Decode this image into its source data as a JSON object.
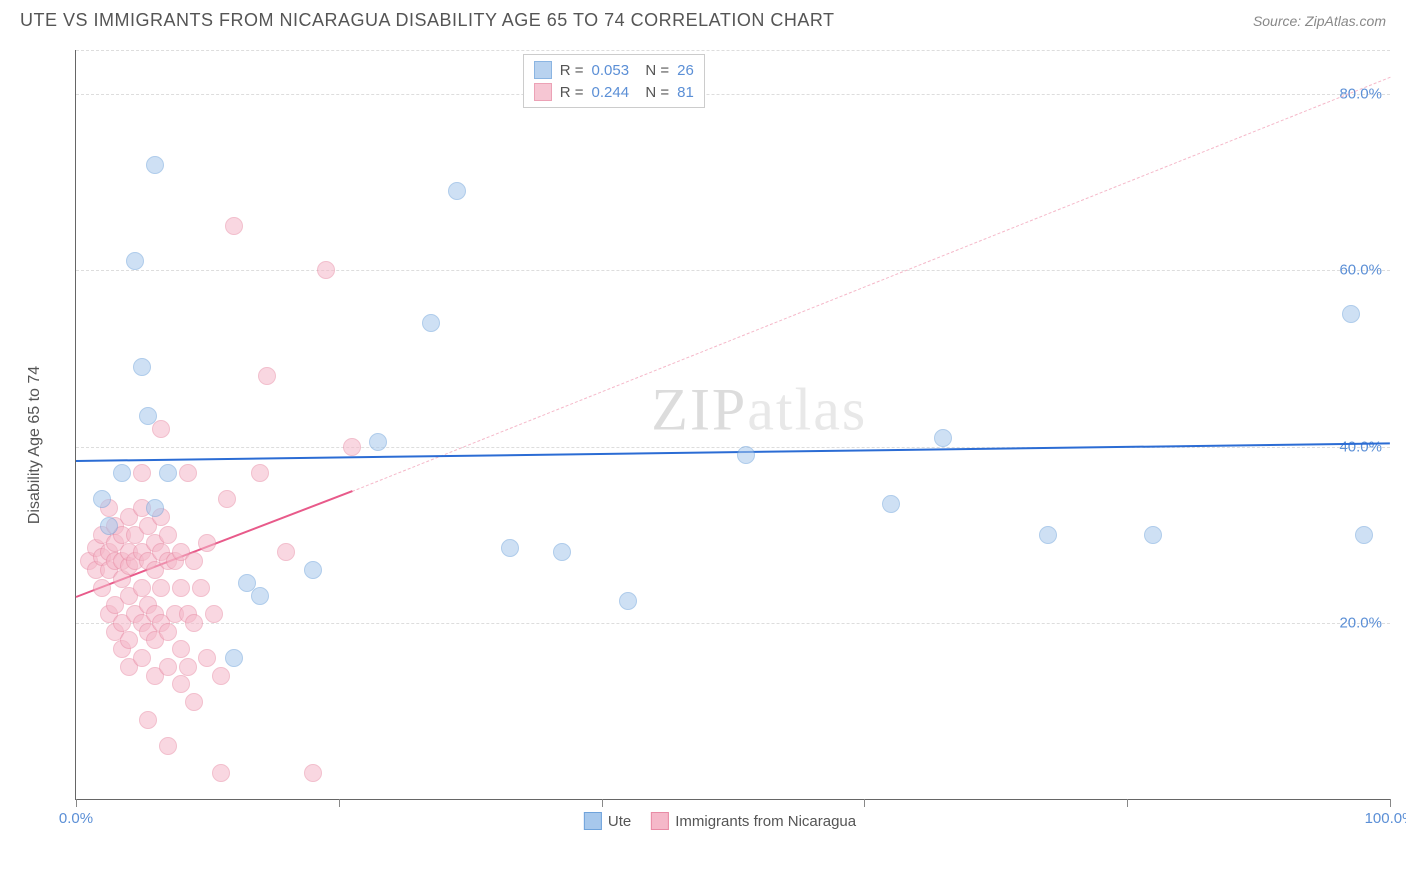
{
  "header": {
    "title": "UTE VS IMMIGRANTS FROM NICARAGUA DISABILITY AGE 65 TO 74 CORRELATION CHART",
    "source": "Source: ZipAtlas.com"
  },
  "chart": {
    "type": "scatter",
    "y_axis_label": "Disability Age 65 to 74",
    "xlim": [
      0,
      100
    ],
    "ylim": [
      0,
      85
    ],
    "xticks": [
      0,
      20,
      40,
      60,
      80,
      100
    ],
    "xtick_labels": {
      "0": "0.0%",
      "100": "100.0%"
    },
    "yticks": [
      20,
      40,
      60,
      80
    ],
    "ytick_labels": [
      "20.0%",
      "40.0%",
      "60.0%",
      "80.0%"
    ],
    "background_color": "#ffffff",
    "grid_color": "#dddddd",
    "point_radius": 9,
    "series": {
      "ute": {
        "label": "Ute",
        "fill_color": "#a7c8ec",
        "stroke_color": "#6fa3db",
        "fill_opacity": 0.55,
        "R": "0.053",
        "N": "26",
        "trend": {
          "x1": 0,
          "y1": 38.5,
          "x2": 100,
          "y2": 40.5,
          "color": "#2b6cd4",
          "width": 2.5,
          "dash": false
        },
        "points": [
          [
            2,
            34
          ],
          [
            2.5,
            31
          ],
          [
            3.5,
            37
          ],
          [
            4.5,
            61
          ],
          [
            5,
            49
          ],
          [
            5.5,
            43.5
          ],
          [
            6,
            72
          ],
          [
            6,
            33
          ],
          [
            7,
            37
          ],
          [
            12,
            16
          ],
          [
            13,
            24.5
          ],
          [
            14,
            23
          ],
          [
            18,
            26
          ],
          [
            23,
            40.5
          ],
          [
            27,
            54
          ],
          [
            29,
            69
          ],
          [
            33,
            28.5
          ],
          [
            37,
            28
          ],
          [
            42,
            22.5
          ],
          [
            51,
            39
          ],
          [
            62,
            33.5
          ],
          [
            66,
            41
          ],
          [
            74,
            30
          ],
          [
            82,
            30
          ],
          [
            97,
            55
          ],
          [
            98,
            30
          ]
        ]
      },
      "nicaragua": {
        "label": "Immigrants from Nicaragua",
        "fill_color": "#f5b8c9",
        "stroke_color": "#e88ba5",
        "fill_opacity": 0.55,
        "R": "0.244",
        "N": "81",
        "trend_solid": {
          "x1": 0,
          "y1": 23,
          "x2": 21,
          "y2": 35,
          "color": "#e85a8a",
          "width": 2.5
        },
        "trend_dash": {
          "x1": 21,
          "y1": 35,
          "x2": 100,
          "y2": 82,
          "color": "#f5b8c9",
          "width": 1.5
        },
        "points": [
          [
            1,
            27
          ],
          [
            1.5,
            26
          ],
          [
            1.5,
            28.5
          ],
          [
            2,
            24
          ],
          [
            2,
            27.5
          ],
          [
            2,
            30
          ],
          [
            2.5,
            21
          ],
          [
            2.5,
            26
          ],
          [
            2.5,
            28
          ],
          [
            2.5,
            33
          ],
          [
            3,
            19
          ],
          [
            3,
            22
          ],
          [
            3,
            27
          ],
          [
            3,
            29
          ],
          [
            3,
            31
          ],
          [
            3.5,
            17
          ],
          [
            3.5,
            20
          ],
          [
            3.5,
            25
          ],
          [
            3.5,
            27
          ],
          [
            3.5,
            30
          ],
          [
            4,
            15
          ],
          [
            4,
            18
          ],
          [
            4,
            23
          ],
          [
            4,
            26.5
          ],
          [
            4,
            28
          ],
          [
            4,
            32
          ],
          [
            4.5,
            21
          ],
          [
            4.5,
            27
          ],
          [
            4.5,
            30
          ],
          [
            5,
            16
          ],
          [
            5,
            20
          ],
          [
            5,
            24
          ],
          [
            5,
            28
          ],
          [
            5,
            33
          ],
          [
            5,
            37
          ],
          [
            5.5,
            9
          ],
          [
            5.5,
            19
          ],
          [
            5.5,
            22
          ],
          [
            5.5,
            27
          ],
          [
            5.5,
            31
          ],
          [
            6,
            14
          ],
          [
            6,
            18
          ],
          [
            6,
            21
          ],
          [
            6,
            26
          ],
          [
            6,
            29
          ],
          [
            6.5,
            20
          ],
          [
            6.5,
            24
          ],
          [
            6.5,
            28
          ],
          [
            6.5,
            32
          ],
          [
            6.5,
            42
          ],
          [
            7,
            6
          ],
          [
            7,
            15
          ],
          [
            7,
            19
          ],
          [
            7,
            27
          ],
          [
            7,
            30
          ],
          [
            7.5,
            21
          ],
          [
            7.5,
            27
          ],
          [
            8,
            13
          ],
          [
            8,
            17
          ],
          [
            8,
            24
          ],
          [
            8,
            28
          ],
          [
            8.5,
            15
          ],
          [
            8.5,
            21
          ],
          [
            8.5,
            37
          ],
          [
            9,
            11
          ],
          [
            9,
            20
          ],
          [
            9,
            27
          ],
          [
            9.5,
            24
          ],
          [
            10,
            16
          ],
          [
            10,
            29
          ],
          [
            10.5,
            21
          ],
          [
            11,
            3
          ],
          [
            11,
            14
          ],
          [
            11.5,
            34
          ],
          [
            12,
            65
          ],
          [
            14,
            37
          ],
          [
            14.5,
            48
          ],
          [
            16,
            28
          ],
          [
            18,
            3
          ],
          [
            19,
            60
          ],
          [
            21,
            40
          ]
        ]
      }
    },
    "watermark": {
      "text_bold": "ZIP",
      "text_light": "atlas"
    }
  }
}
